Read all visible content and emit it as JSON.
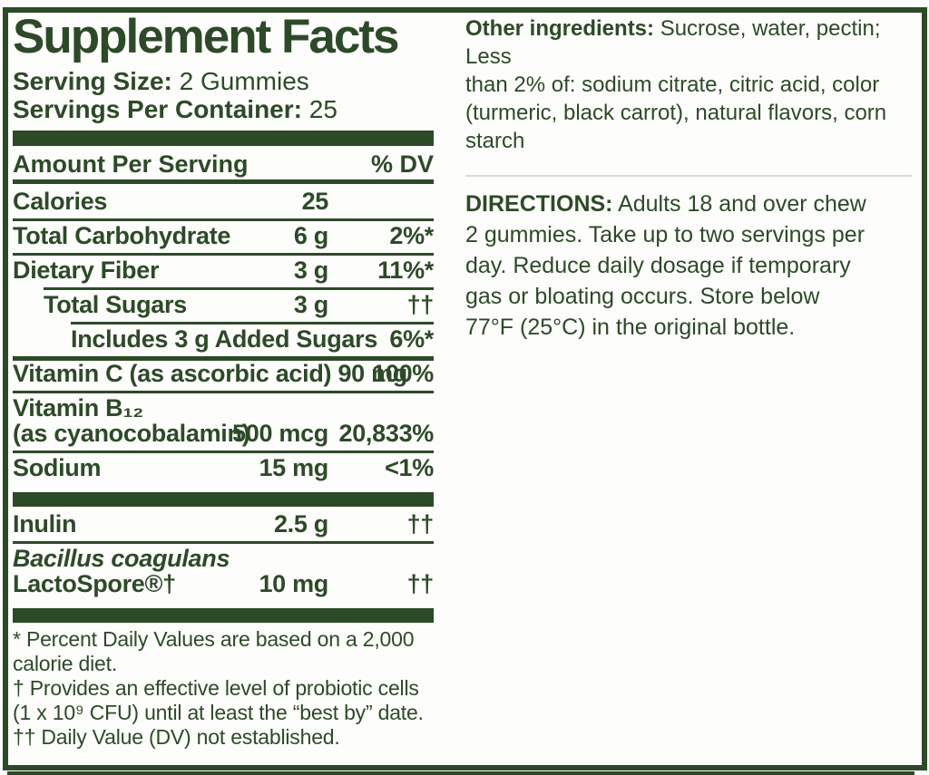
{
  "colors": {
    "green": "#2d4a28",
    "background": "#fdfdfb",
    "faint_divider": "#d8ddd4"
  },
  "facts": {
    "title": "Supplement Facts",
    "serving_size_label": "Serving Size:",
    "serving_size_value": "2 Gummies",
    "servings_per_container_label": "Servings Per Container:",
    "servings_per_container_value": "25",
    "header": {
      "amount_label": "Amount Per Serving",
      "dv_label": "% DV"
    },
    "rows": [
      {
        "name": "Calories",
        "amount": "25",
        "dv": ""
      },
      {
        "name": "Total Carbohydrate",
        "amount": "6 g",
        "dv": "2%*"
      },
      {
        "name": "Dietary Fiber",
        "amount": "3 g",
        "dv": "11%*"
      },
      {
        "name": "Total Sugars",
        "amount": "3 g",
        "dv": "††"
      },
      {
        "name": "Includes 3 g Added Sugars",
        "amount": "",
        "dv": "6%*"
      },
      {
        "name": "Vitamin C (as ascorbic acid)",
        "amount": "90 mg",
        "dv": "100%"
      },
      {
        "name": "Vitamin B₁₂",
        "name2": "(as cyanocobalamin)",
        "amount": "500 mcg",
        "dv": "20,833%"
      },
      {
        "name": "Sodium",
        "amount": "15 mg",
        "dv": "<1%"
      },
      {
        "name": "Inulin",
        "amount": "2.5 g",
        "dv": "††"
      },
      {
        "name": "Bacillus coagulans",
        "name2": "LactoSpore®†",
        "amount": "10 mg",
        "dv": "††"
      }
    ],
    "footnotes": [
      "* Percent Daily Values are based on a 2,000\ncalorie diet.",
      "† Provides an effective level of probiotic cells\n(1 x 10⁹ CFU) until at least the “best by” date.",
      "†† Daily Value (DV) not established."
    ]
  },
  "right_panel": {
    "other_ingredients": {
      "label": "Other ingredients:",
      "text": "Sucrose, water, pectin; Less\nthan 2% of: sodium citrate, citric acid, color\n(turmeric, black carrot), natural flavors, corn starch"
    },
    "directions": {
      "label": "DIRECTIONS:",
      "text": "Adults 18 and over chew\n2 gummies. Take up to two servings per\nday. Reduce daily dosage if temporary\ngas or bloating occurs. Store below\n77°F (25°C) in the original bottle."
    }
  }
}
